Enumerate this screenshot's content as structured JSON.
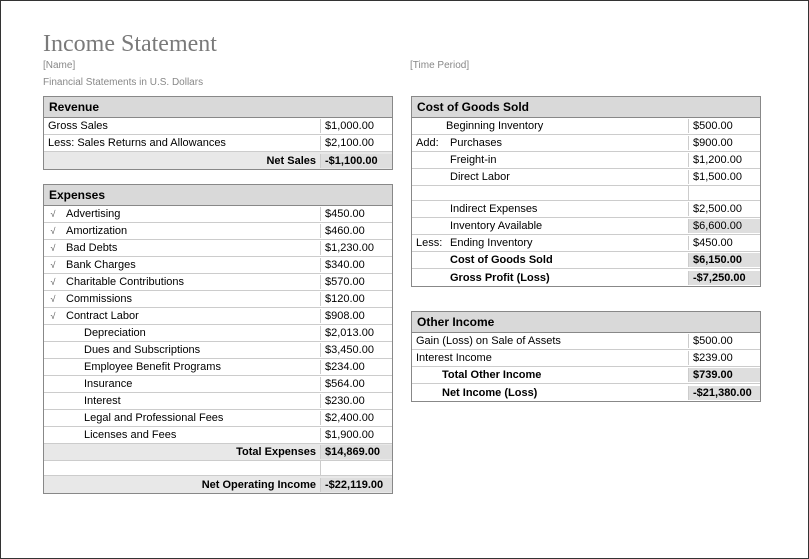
{
  "title": "Income Statement",
  "meta": {
    "name": "[Name]",
    "time_period": "[Time Period]",
    "currency_note": "Financial Statements in U.S. Dollars"
  },
  "revenue": {
    "header": "Revenue",
    "rows": [
      {
        "label": "Gross Sales",
        "value": "$1,000.00"
      },
      {
        "label": "Less: Sales Returns and Allowances",
        "value": "$2,100.00"
      }
    ],
    "total": {
      "label": "Net Sales",
      "value": "-$1,100.00"
    }
  },
  "expenses": {
    "header": "Expenses",
    "rows": [
      {
        "chk": "√",
        "label": "Advertising",
        "value": "$450.00"
      },
      {
        "chk": "√",
        "label": "Amortization",
        "value": "$460.00"
      },
      {
        "chk": "√",
        "label": "Bad Debts",
        "value": "$1,230.00"
      },
      {
        "chk": "√",
        "label": "Bank Charges",
        "value": "$340.00"
      },
      {
        "chk": "√",
        "label": "Charitable Contributions",
        "value": "$570.00"
      },
      {
        "chk": "√",
        "label": "Commissions",
        "value": "$120.00"
      },
      {
        "chk": "√",
        "label": "Contract Labor",
        "value": "$908.00"
      },
      {
        "chk": "",
        "label": "Depreciation",
        "value": "$2,013.00"
      },
      {
        "chk": "",
        "label": "Dues and Subscriptions",
        "value": "$3,450.00"
      },
      {
        "chk": "",
        "label": "Employee Benefit Programs",
        "value": "$234.00"
      },
      {
        "chk": "",
        "label": "Insurance",
        "value": "$564.00"
      },
      {
        "chk": "",
        "label": "Interest",
        "value": "$230.00"
      },
      {
        "chk": "",
        "label": "Legal and Professional Fees",
        "value": "$2,400.00"
      },
      {
        "chk": "",
        "label": "Licenses and Fees",
        "value": "$1,900.00"
      }
    ],
    "total": {
      "label": "Total Expenses",
      "value": "$14,869.00"
    },
    "net": {
      "label": "Net Operating Income",
      "value": "-$22,119.00"
    }
  },
  "cogs": {
    "header": "Cost of Goods Sold",
    "rows": [
      {
        "prefix": "",
        "label": "Beginning Inventory",
        "value": "$500.00",
        "indent": false
      },
      {
        "prefix": "Add:",
        "label": "Purchases",
        "value": "$900.00",
        "indent": true
      },
      {
        "prefix": "",
        "label": "Freight-in",
        "value": "$1,200.00",
        "indent": true
      },
      {
        "prefix": "",
        "label": "Direct Labor",
        "value": "$1,500.00",
        "indent": true
      }
    ],
    "blank1": true,
    "rows2": [
      {
        "prefix": "",
        "label": "Indirect Expenses",
        "value": "$2,500.00",
        "indent": true
      },
      {
        "prefix": "",
        "label": "Inventory Available",
        "value": "$6,600.00",
        "indent": true,
        "shade": true
      },
      {
        "prefix": "Less:",
        "label": "Ending Inventory",
        "value": "$450.00",
        "indent": true
      },
      {
        "prefix": "",
        "label": "Cost of Goods Sold",
        "value": "$6,150.00",
        "indent": true,
        "bold": true,
        "shade": true
      },
      {
        "prefix": "",
        "label": "Gross Profit (Loss)",
        "value": "-$7,250.00",
        "indent": true,
        "bold": true,
        "shade": true
      }
    ]
  },
  "other": {
    "header": "Other Income",
    "rows": [
      {
        "label": "Gain (Loss) on Sale of Assets",
        "value": "$500.00"
      },
      {
        "label": "Interest Income",
        "value": "$239.00"
      }
    ],
    "total": {
      "label": "Total Other Income",
      "value": "$739.00"
    },
    "net": {
      "label": "Net Income (Loss)",
      "value": "-$21,380.00"
    }
  }
}
